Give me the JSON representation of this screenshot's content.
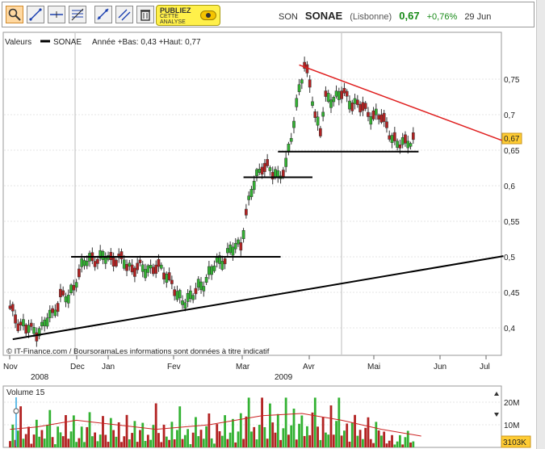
{
  "toolbar": {
    "tools": [
      "zoom-icon",
      "trendline-icon",
      "horizontal-line-icon",
      "fibonacci-icon",
      "channel-icon",
      "parallel-lines-icon",
      "delete-icon"
    ],
    "promo": {
      "line1": "PUBLIEZ",
      "line2": "CETTE",
      "line3": "ANALYSE"
    }
  },
  "quote": {
    "code": "SON",
    "name": "SONAE",
    "exchange": "(Lisbonne)",
    "price": "0,67",
    "change": "+0,76%",
    "date": "29 Jun"
  },
  "legend": {
    "prefix": "Valeurs",
    "series": "SONAE",
    "info": "Année +Bas: 0,43 +Haut: 0,77"
  },
  "credit": "© IT-Finance.com / BoursoramaLes informations sont données à titre indicatif",
  "volume_label": "Volume 15",
  "last_volume": "3103K",
  "colors": {
    "up": "#33b233",
    "down": "#b22222",
    "trend_resistance": "#e02020",
    "price_badge": "#ffcc33",
    "volume_avg": "#cc2222",
    "cursor": "#2aa6e0"
  },
  "chart_data": [
    {
      "type": "candlestick",
      "name": "price",
      "x_labels": [
        "Nov",
        "Dec",
        "Jan",
        "Fev",
        "Mar",
        "Avr",
        "Mai",
        "Jun",
        "Jul"
      ],
      "year_labels": [
        "2008",
        "2009"
      ],
      "y_ticks": [
        "0,4",
        "0,45",
        "0,5",
        "0,55",
        "0,6",
        "0,65",
        "0,7",
        "0,75"
      ],
      "ylim": [
        0.36,
        0.8
      ],
      "last_price_label": "0,67",
      "anchors": [
        [
          0,
          0.425
        ],
        [
          3,
          0.41
        ],
        [
          6,
          0.4
        ],
        [
          9,
          0.395
        ],
        [
          12,
          0.4
        ],
        [
          16,
          0.42
        ],
        [
          19,
          0.445
        ],
        [
          22,
          0.44
        ],
        [
          25,
          0.47
        ],
        [
          28,
          0.49
        ],
        [
          31,
          0.5
        ],
        [
          34,
          0.495
        ],
        [
          37,
          0.5
        ],
        [
          40,
          0.497
        ],
        [
          43,
          0.492
        ],
        [
          46,
          0.485
        ],
        [
          50,
          0.483
        ],
        [
          54,
          0.485
        ],
        [
          58,
          0.48
        ],
        [
          61,
          0.465
        ],
        [
          63,
          0.44
        ],
        [
          66,
          0.44
        ],
        [
          69,
          0.445
        ],
        [
          72,
          0.46
        ],
        [
          75,
          0.475
        ],
        [
          78,
          0.49
        ],
        [
          81,
          0.5
        ],
        [
          84,
          0.51
        ],
        [
          87,
          0.52
        ],
        [
          89,
          0.56
        ],
        [
          91,
          0.59
        ],
        [
          93,
          0.615
        ],
        [
          95,
          0.63
        ],
        [
          98,
          0.62
        ],
        [
          101,
          0.615
        ],
        [
          104,
          0.625
        ],
        [
          107,
          0.69
        ],
        [
          109,
          0.74
        ],
        [
          111,
          0.765
        ],
        [
          113,
          0.745
        ],
        [
          115,
          0.7
        ],
        [
          117,
          0.68
        ],
        [
          119,
          0.72
        ],
        [
          122,
          0.725
        ],
        [
          125,
          0.73
        ],
        [
          128,
          0.72
        ],
        [
          131,
          0.715
        ],
        [
          134,
          0.705
        ],
        [
          137,
          0.7
        ],
        [
          140,
          0.695
        ],
        [
          142,
          0.685
        ],
        [
          144,
          0.67
        ],
        [
          146,
          0.655
        ],
        [
          148,
          0.66
        ],
        [
          150,
          0.665
        ],
        [
          152,
          0.665
        ]
      ],
      "trendlines": [
        {
          "name": "support-trendline",
          "from": [
            1,
            0.384
          ],
          "to": [
            186,
            0.501
          ]
        },
        {
          "name": "resistance-trendline",
          "from": [
            109,
            0.77
          ],
          "to": [
            186,
            0.663
          ]
        },
        {
          "name": "resistance-level-050",
          "from": [
            23,
            0.5
          ],
          "to": [
            102,
            0.5
          ]
        },
        {
          "name": "level-061",
          "from": [
            88,
            0.612
          ],
          "to": [
            114,
            0.612
          ]
        },
        {
          "name": "level-065",
          "from": [
            101,
            0.648
          ],
          "to": [
            154,
            0.648
          ]
        }
      ]
    },
    {
      "type": "bar",
      "name": "volume",
      "y_ticks": [
        "10M",
        "20M"
      ],
      "ylim": [
        0,
        24
      ],
      "unit": "M",
      "pattern": [
        4,
        11,
        3,
        6,
        14,
        3,
        5,
        9,
        2,
        7,
        12,
        4,
        6,
        3,
        8,
        15,
        5,
        2,
        10,
        6
      ],
      "moving_average": [
        [
          0,
          8
        ],
        [
          10,
          9
        ],
        [
          25,
          12
        ],
        [
          40,
          10
        ],
        [
          55,
          8
        ],
        [
          75,
          10
        ],
        [
          95,
          14
        ],
        [
          110,
          15
        ],
        [
          125,
          12
        ],
        [
          140,
          8
        ],
        [
          155,
          5
        ]
      ]
    }
  ]
}
